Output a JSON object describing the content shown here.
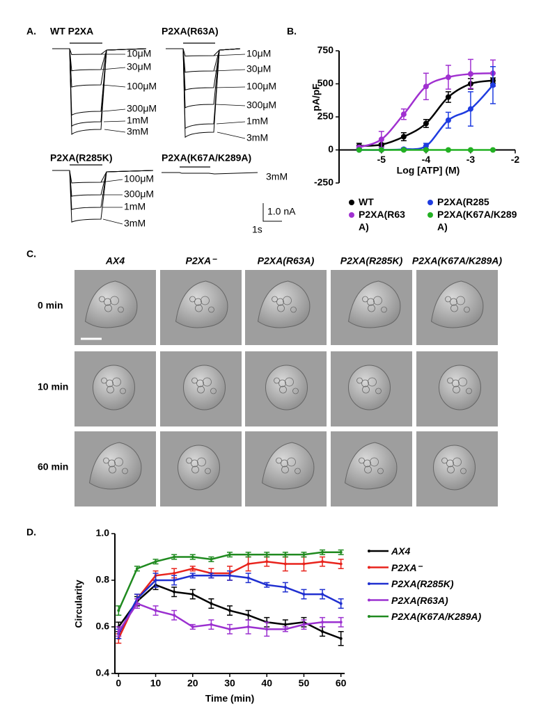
{
  "panel_a": {
    "label": "A.",
    "traces": [
      {
        "title": "WT P2XA",
        "concentrations": [
          "10μM",
          "30μM",
          "100μM",
          "300μM",
          "1mM",
          "3mM"
        ]
      },
      {
        "title": "P2XA(R63A)",
        "concentrations": [
          "10μM",
          "30μM",
          "100μM",
          "300μM",
          "1mM",
          "3mM"
        ]
      },
      {
        "title": "P2XA(R285K)",
        "concentrations": [
          "100μM",
          "300μM",
          "1mM",
          "3mM"
        ]
      },
      {
        "title": "P2XA(K67A/K289A)",
        "concentrations": [
          "3mM"
        ]
      }
    ],
    "scale_current": "1.0 nA",
    "scale_time": "1s"
  },
  "panel_b_label": "B.",
  "panel_c": {
    "label": "C.",
    "columns": [
      "AX4",
      "P2XA⁻",
      "P2XA(R63A)",
      "P2XA(R285K)",
      "P2XA(K67A/K289A)"
    ],
    "rows": [
      "0 min",
      "10 min",
      "60 min"
    ]
  },
  "panel_d_label": "D.",
  "chart_data": [
    {
      "type": "scatter",
      "x_label": "Log [ATP]  (M)",
      "y_label": "pA/pF",
      "x": [
        -5.5,
        -5,
        -4.5,
        -4,
        -3.5,
        -3,
        -2.5
      ],
      "series": [
        {
          "name": "WT",
          "color": "#000000",
          "values": [
            30,
            40,
            100,
            200,
            400,
            500,
            525
          ],
          "errors": [
            20,
            10,
            30,
            30,
            40,
            40,
            20
          ]
        },
        {
          "name": "P2XA(R63A)",
          "color": "#a030d0",
          "values": [
            20,
            80,
            270,
            480,
            550,
            575,
            580
          ],
          "errors": [
            10,
            60,
            40,
            100,
            90,
            110,
            100
          ]
        },
        {
          "name": "P2XA(R285",
          "color": "#1f3ce0",
          "values": [
            0,
            0,
            5,
            30,
            225,
            310,
            490
          ],
          "errors": [
            5,
            5,
            10,
            20,
            60,
            130,
            140
          ]
        },
        {
          "name": "P2XA(K67A/K289A)",
          "color": "#22b022",
          "values": [
            0,
            0,
            0,
            0,
            0,
            0,
            0
          ],
          "errors": [
            0,
            0,
            0,
            0,
            0,
            0,
            0
          ]
        }
      ],
      "xlim": [
        -5.95,
        -2
      ],
      "xticks": [
        -5,
        -4,
        -3,
        -2
      ],
      "ylim": [
        -250,
        750
      ],
      "yticks": [
        -250,
        0,
        250,
        500,
        750
      ]
    },
    {
      "type": "line",
      "x_label": "Time (min)",
      "y_label": "Circularity",
      "x": [
        0,
        5,
        10,
        15,
        20,
        25,
        30,
        35,
        40,
        45,
        50,
        55,
        60
      ],
      "series": [
        {
          "name": "AX4",
          "color": "#000000",
          "values": [
            0.6,
            0.71,
            0.78,
            0.75,
            0.74,
            0.7,
            0.67,
            0.65,
            0.62,
            0.61,
            0.62,
            0.58,
            0.55
          ],
          "errors": [
            0.02,
            0.02,
            0.02,
            0.02,
            0.02,
            0.02,
            0.02,
            0.02,
            0.02,
            0.02,
            0.02,
            0.02,
            0.03
          ]
        },
        {
          "name": "P2XA⁻",
          "color": "#e8231c",
          "values": [
            0.55,
            0.72,
            0.82,
            0.83,
            0.85,
            0.83,
            0.83,
            0.87,
            0.88,
            0.87,
            0.87,
            0.88,
            0.87
          ],
          "errors": [
            0.02,
            0.02,
            0.02,
            0.02,
            0.01,
            0.02,
            0.03,
            0.03,
            0.02,
            0.03,
            0.03,
            0.02,
            0.02
          ]
        },
        {
          "name": "P2XA(R285K)",
          "color": "#1f2fd0",
          "values": [
            0.57,
            0.72,
            0.8,
            0.8,
            0.82,
            0.82,
            0.82,
            0.81,
            0.78,
            0.77,
            0.74,
            0.74,
            0.7
          ],
          "errors": [
            0.02,
            0.02,
            0.03,
            0.02,
            0.01,
            0.01,
            0.02,
            0.02,
            0.01,
            0.02,
            0.02,
            0.02,
            0.02
          ]
        },
        {
          "name": "P2XA(R63A)",
          "color": "#9b30d0",
          "values": [
            0.58,
            0.7,
            0.67,
            0.65,
            0.6,
            0.61,
            0.59,
            0.6,
            0.59,
            0.59,
            0.61,
            0.62,
            0.62
          ],
          "errors": [
            0.02,
            0.02,
            0.02,
            0.02,
            0.01,
            0.02,
            0.02,
            0.03,
            0.03,
            0.01,
            0.02,
            0.02,
            0.02
          ]
        },
        {
          "name": "P2XA(K67A/K289A)",
          "color": "#1f8a1f",
          "values": [
            0.67,
            0.85,
            0.88,
            0.9,
            0.9,
            0.89,
            0.91,
            0.91,
            0.91,
            0.91,
            0.91,
            0.92,
            0.92
          ],
          "errors": [
            0.02,
            0.01,
            0.01,
            0.01,
            0.01,
            0.01,
            0.01,
            0.01,
            0.01,
            0.01,
            0.01,
            0.01,
            0.01
          ]
        }
      ],
      "xlim": [
        -1,
        61
      ],
      "xticks": [
        0,
        10,
        20,
        30,
        40,
        50,
        60
      ],
      "ylim": [
        0.4,
        1.0
      ],
      "yticks": [
        0.4,
        0.6,
        0.8,
        {
          "value": 1,
          "label": "1.0"
        }
      ]
    }
  ]
}
